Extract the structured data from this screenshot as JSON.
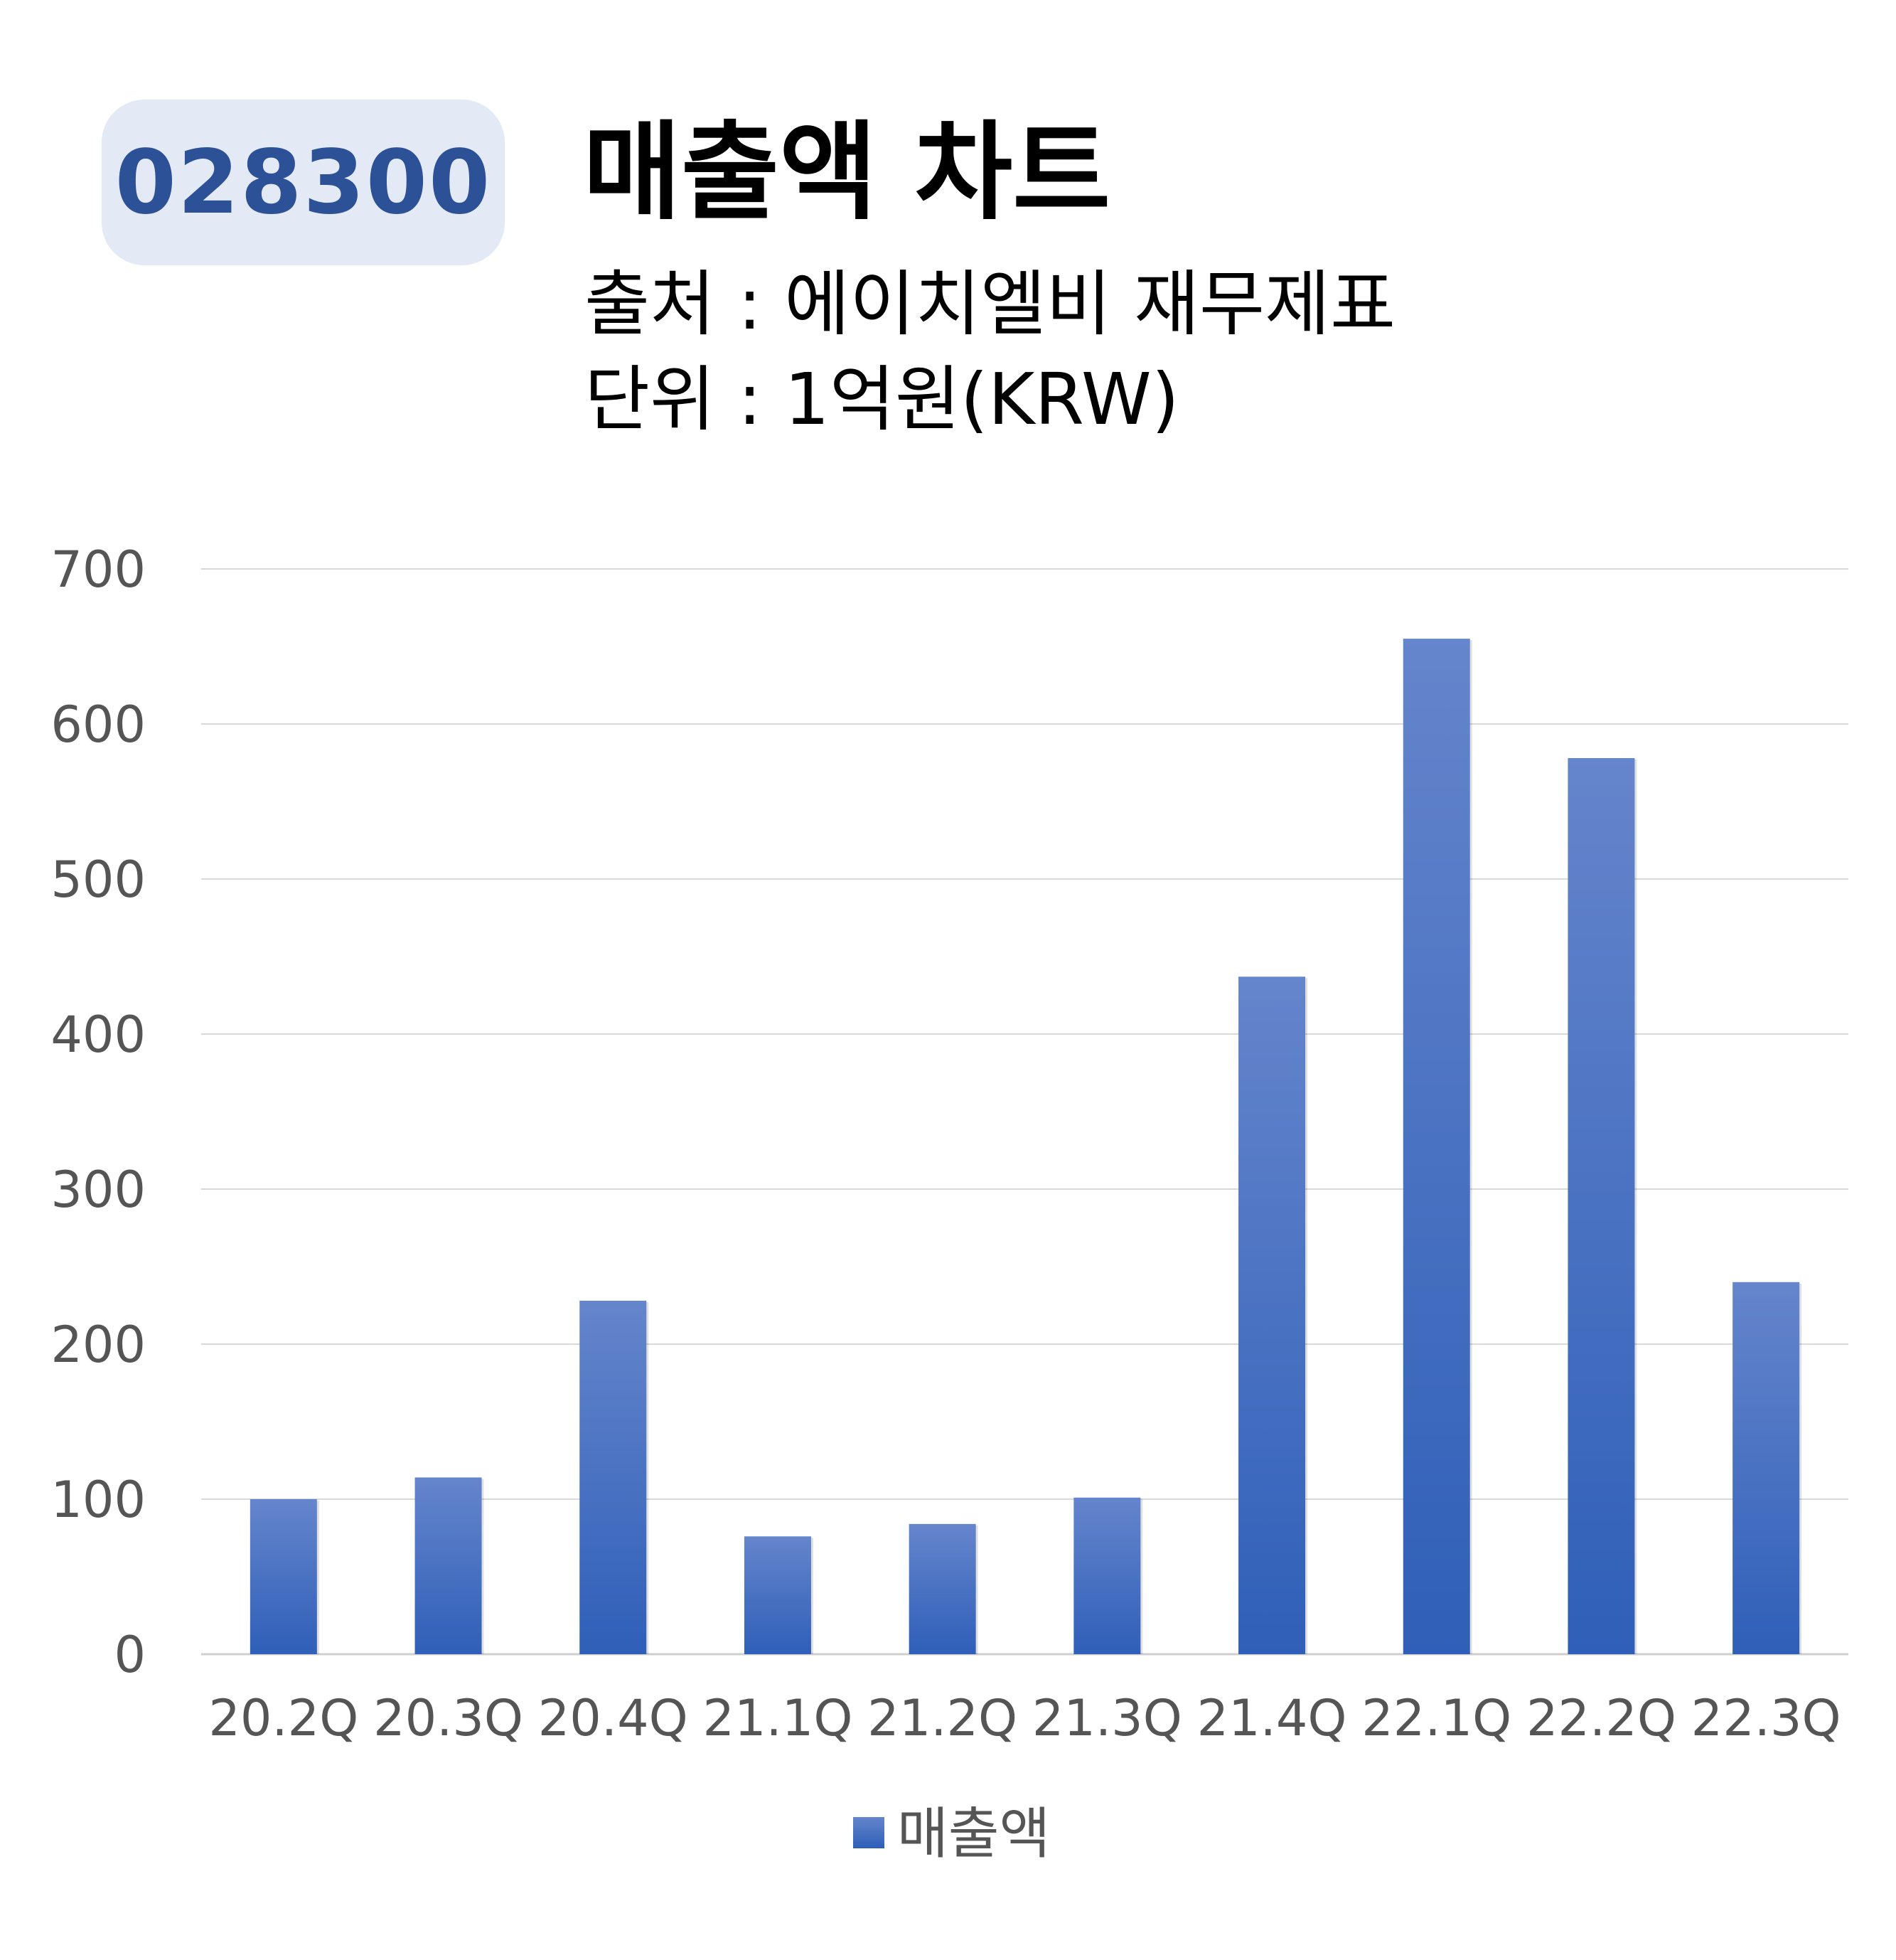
{
  "badge": {
    "code": "028300"
  },
  "header": {
    "title": "매출액 차트",
    "source": "출처 : 에이치엘비 재무제표",
    "unit": "단위 : 1억원(KRW)"
  },
  "colors": {
    "bar_top": "#6585cc",
    "bar_bottom": "#2f5fb8",
    "grid": "#d9d9d9",
    "badge_bg": "#e3e9f5",
    "badge_text": "#2d5196"
  },
  "chart_data": {
    "type": "bar",
    "title": "매출액 차트",
    "xlabel": "",
    "ylabel": "",
    "ylim": [
      0,
      700
    ],
    "yticks": [
      0,
      100,
      200,
      300,
      400,
      500,
      600,
      700
    ],
    "grid": true,
    "legend_position": "bottom-center",
    "categories": [
      "20.2Q",
      "20.3Q",
      "20.4Q",
      "21.1Q",
      "21.2Q",
      "21.3Q",
      "21.4Q",
      "22.1Q",
      "22.2Q",
      "22.3Q"
    ],
    "series": [
      {
        "name": "매출액",
        "values": [
          100,
          114,
          228,
          76,
          84,
          101,
          437,
          655,
          578,
          240
        ]
      }
    ]
  }
}
